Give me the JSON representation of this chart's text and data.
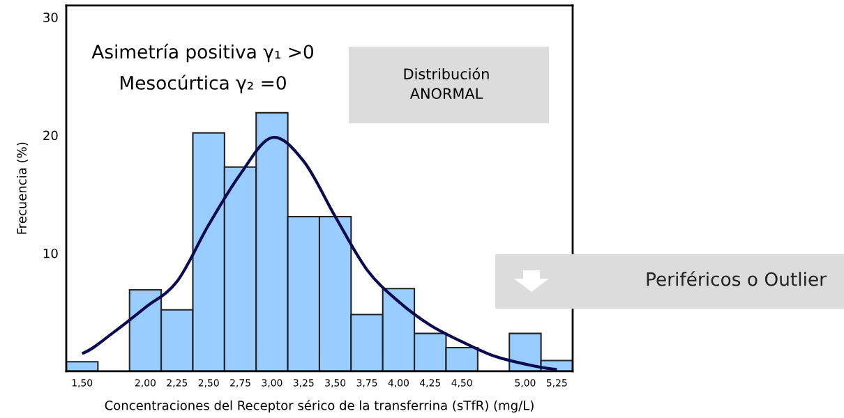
{
  "chart_data": {
    "type": "bar",
    "xlabel": "Concentraciones del Receptor sérico de la transferrina (sTfR) (mg/L)",
    "ylabel": "Frecuencia (%)",
    "categories": [
      "1,50",
      null,
      "2,00",
      "2,25",
      "2,50",
      "2,75",
      "3,00",
      "3,25",
      "3,50",
      "3,75",
      "4,00",
      "4,25",
      "4,50",
      null,
      "5,00",
      "5,25"
    ],
    "series": [
      {
        "color": "#99ccff",
        "values": [
          0.8,
          null,
          6.9,
          5.2,
          20.2,
          17.3,
          21.9,
          13.1,
          13.1,
          4.8,
          7.0,
          3.2,
          2.0,
          null,
          3.2,
          0.9
        ]
      },
      {
        "type": "line",
        "color": "#0a0a50",
        "values": [
          1.5,
          3.3,
          5.4,
          7.6,
          12.4,
          16.7,
          19.8,
          17.8,
          13.1,
          8.6,
          5.9,
          3.9,
          2.5,
          1.3,
          0.6,
          0.15
        ]
      }
    ],
    "ylim": [
      0,
      31
    ],
    "yticks": [
      10,
      20,
      30
    ],
    "grid": false,
    "marker": "none",
    "line_style": "solid",
    "annotations": [
      "Asimetría positiva γ₁ >0",
      "Mesocúrtica γ₂ =0",
      "Distribución\nANORMAL",
      "Periféricos o Outlier"
    ]
  }
}
